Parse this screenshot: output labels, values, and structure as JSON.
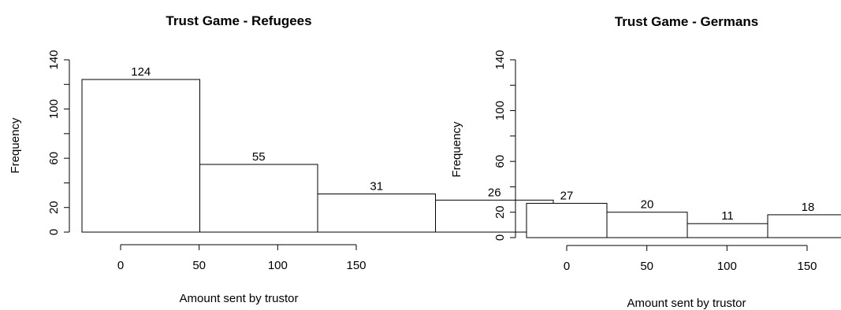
{
  "chart_data": [
    {
      "type": "bar",
      "title": "Trust Game - Refugees",
      "xlabel": "Amount sent by trustor",
      "ylabel": "Frequency",
      "categories": [
        "0",
        "50",
        "100",
        "150"
      ],
      "x": [
        0,
        50,
        100,
        150
      ],
      "values": [
        124,
        55,
        31,
        26
      ],
      "data_labels": [
        "124",
        "55",
        "31",
        "26"
      ],
      "yticks": [
        "0",
        "20",
        "60",
        "100",
        "140"
      ],
      "ylim": [
        0,
        140
      ],
      "grid": false,
      "legend": "none"
    },
    {
      "type": "bar",
      "title": "Trust Game - Germans",
      "xlabel": "Amount sent by trustor",
      "ylabel": "Frequency",
      "categories": [
        "0",
        "50",
        "100",
        "150"
      ],
      "x": [
        0,
        50,
        100,
        150
      ],
      "values": [
        27,
        20,
        11,
        18
      ],
      "data_labels": [
        "27",
        "20",
        "11",
        "18"
      ],
      "yticks": [
        "0",
        "20",
        "60",
        "100",
        "140"
      ],
      "ylim": [
        0,
        140
      ],
      "grid": false,
      "legend": "none"
    }
  ]
}
